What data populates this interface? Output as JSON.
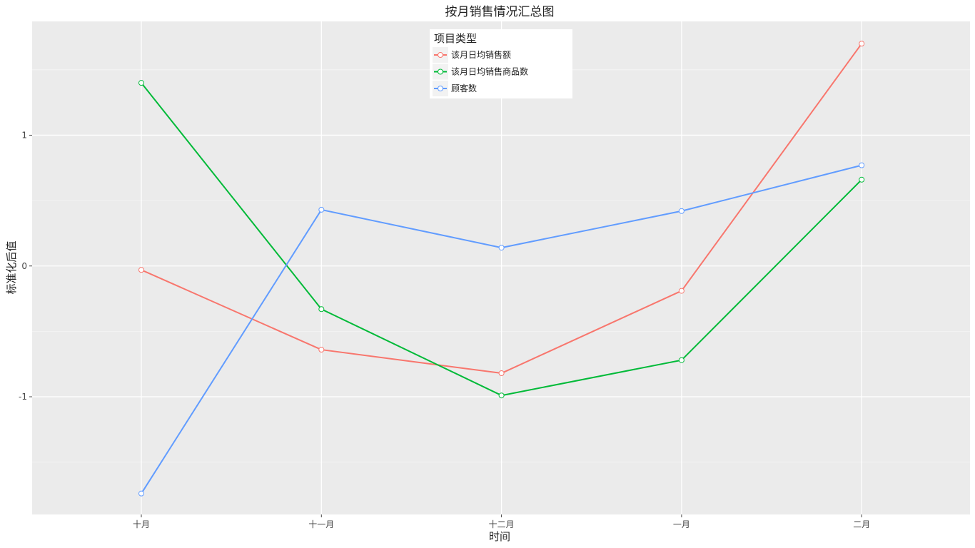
{
  "chart_data": {
    "type": "line",
    "title": "按月销售情况汇总图",
    "xlabel": "时间",
    "ylabel": "标准化后值",
    "categories": [
      "十月",
      "十一月",
      "十二月",
      "一月",
      "二月"
    ],
    "ylim": [
      -1.9,
      1.87
    ],
    "yticks": [
      -1,
      0,
      1
    ],
    "grid": true,
    "legend": {
      "title": "项目类型",
      "placement": "top-center"
    },
    "series": [
      {
        "name": "该月日均销售额",
        "color": "#f8766d",
        "values": [
          -0.03,
          -0.64,
          -0.82,
          -0.19,
          1.7
        ]
      },
      {
        "name": "该月日均销售商品数",
        "color": "#00ba38",
        "values": [
          1.4,
          -0.33,
          -0.99,
          -0.72,
          0.66
        ]
      },
      {
        "name": "顾客数",
        "color": "#619cff",
        "values": [
          -1.74,
          0.43,
          0.14,
          0.42,
          0.77
        ]
      }
    ]
  }
}
